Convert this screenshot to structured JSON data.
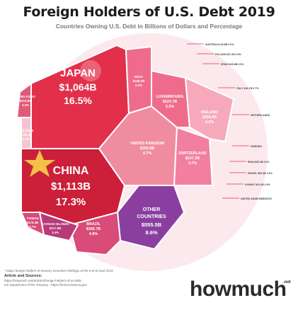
{
  "header": {
    "title": "Foreign Holders of U.S. Debt 2019",
    "subtitle": "Countries Owning U.S. Debt in Billions of Dollars and Percentage"
  },
  "colors": {
    "japan": "#e2304a",
    "china": "#cc1f3a",
    "other": "#8a3fa0",
    "brazil": "#d94b78",
    "uk": "#f08ca0",
    "switzerland": "#f27fa0",
    "luxembourg": "#ef6b8c",
    "ireland": "#f5a9bb",
    "cayman": "#b73a78",
    "hongkong": "#e05a78",
    "minor": "#f6c4d0",
    "brand_accent": "#7b3fa0"
  },
  "chart_data": {
    "type": "area",
    "title": "Foreign Holders of U.S. Debt 2019",
    "subtitle": "Countries Owning U.S. Debt in Billions of Dollars and Percentage",
    "units": "Billions of Dollars and Percentage",
    "major": [
      {
        "country": "JAPAN",
        "value": "$1,064B",
        "pct": "16.5%",
        "amount": 1064,
        "share": 16.5
      },
      {
        "country": "CHINA",
        "value": "$1,113B",
        "pct": "17.3%",
        "amount": 1113,
        "share": 17.3
      },
      {
        "country": "OTHER COUNTRIES",
        "value": "$555.5B",
        "pct": "8.6%",
        "amount": 555.5,
        "share": 8.6
      },
      {
        "country": "BRAZIL",
        "value": "$306.7B",
        "pct": "4.8%",
        "amount": 306.7,
        "share": 4.8
      },
      {
        "country": "UNITED KINGDOM",
        "value": "$300.8B",
        "pct": "4.7%",
        "amount": 300.8,
        "share": 4.7
      },
      {
        "country": "SWITZERLAND",
        "value": "$237.2B",
        "pct": "3.7%",
        "amount": 237.2,
        "share": 3.7
      },
      {
        "country": "LUXEMBOURG",
        "value": "$223.7B",
        "pct": "3.5%",
        "amount": 223.7,
        "share": 3.5
      },
      {
        "country": "IRELAND",
        "value": "$268.8B",
        "pct": "4.2%",
        "amount": 268.8,
        "share": 4.2
      },
      {
        "country": "CAYMAN ISLANDS",
        "value": "$217.5B",
        "pct": "3.4%",
        "amount": 217.5,
        "share": 3.4
      },
      {
        "country": "HONG KONG",
        "value": "$213.5B",
        "pct": "3.3%",
        "amount": 213.5,
        "share": 3.3
      },
      {
        "country": "BELGIUM",
        "value": "$155.3B",
        "pct": "2.4%",
        "amount": 155.3,
        "share": 2.4
      },
      {
        "country": "TAIWAN",
        "value": "$175.3B",
        "pct": "2.7%",
        "amount": 175.3,
        "share": 2.7
      },
      {
        "country": "INDIA",
        "value": "$155.0B",
        "pct": "2.4%",
        "amount": 155.0,
        "share": 2.4
      }
    ],
    "minor_labels": [
      "AUSTRALIA $3.8B 0.6%",
      "POLAND $37.2B 0.6%",
      "SPAIN $40.8B 0.6%",
      "ITALY $43.7B 0.7%",
      "NETHERLANDS",
      "SWEDEN",
      "IRAN $35.4B 0.6%",
      "ISRAEL $36.3B 0.6%",
      "KUWAIT $41.4B 0.6%",
      "UNITED ARAB EMIRATES"
    ],
    "notes": [
      "* Major foreign holders of treasury securities holdings at the end of April 2019",
      "Article and Sources:",
      "https://howmuch.net/articles/foreign-holders-of-us-debt",
      "US Department of the Treasury - https://home.treasury.gov"
    ],
    "brand": "howmuch",
    "brand_tld": ".net"
  }
}
